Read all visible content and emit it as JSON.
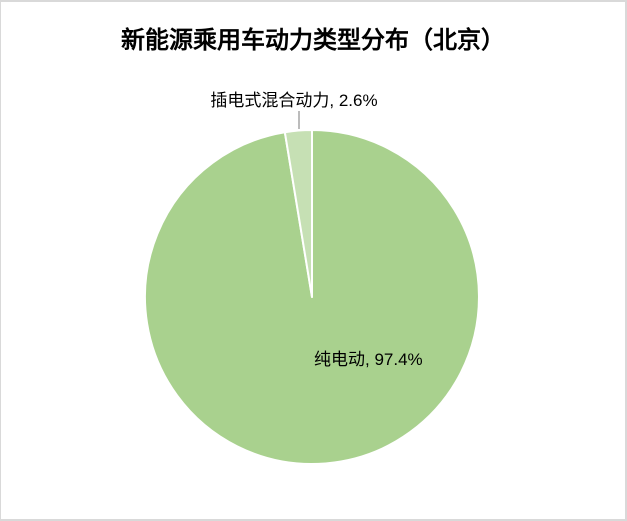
{
  "frame": {
    "background": "#ffffff",
    "border_color": "#d9d9d9"
  },
  "chart_data": {
    "type": "pie",
    "title": "新能源乘用车动力类型分布（北京）",
    "unit": "%",
    "start_angle_deg": 0,
    "direction": "clockwise",
    "legend_position": "none",
    "grid": false,
    "slice_border_color": "#ffffff",
    "leader_line_color": "#a6a6a6",
    "title_color": "#000000",
    "label_color": "#000000",
    "slices": [
      {
        "name": "纯电动",
        "value": 97.4,
        "display": "纯电动, 97.4%",
        "color": "#a9d18e",
        "label_position": "inside"
      },
      {
        "name": "插电式混合动力",
        "value": 2.6,
        "display": "插电式混合动力, 2.6%",
        "color": "#c6e0b4",
        "label_position": "outside-top-with-leader"
      }
    ]
  }
}
